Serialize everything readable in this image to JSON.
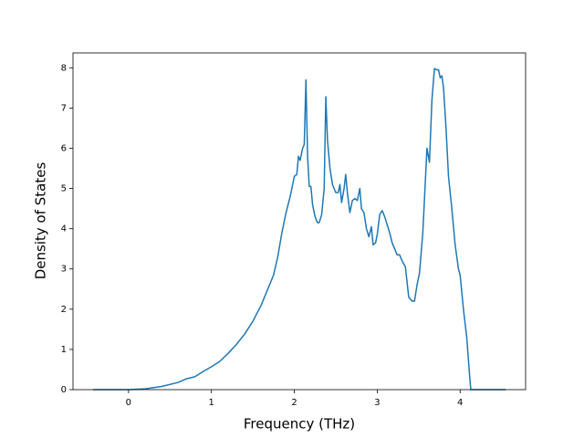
{
  "chart_data": {
    "type": "line",
    "xlabel": "Frequency (THz)",
    "ylabel": "Density of States",
    "color": "#1f77b4",
    "xlim": [
      -0.67,
      4.79
    ],
    "ylim": [
      0,
      8.37
    ],
    "xticks": [
      0,
      1,
      2,
      3,
      4
    ],
    "yticks": [
      0,
      1,
      2,
      3,
      4,
      5,
      6,
      7,
      8
    ],
    "x": [
      -0.43,
      0,
      0.2,
      0.4,
      0.6,
      0.7,
      0.8,
      0.9,
      1.0,
      1.1,
      1.2,
      1.3,
      1.4,
      1.5,
      1.6,
      1.7,
      1.75,
      1.8,
      1.85,
      1.9,
      1.95,
      2.0,
      2.03,
      2.05,
      2.07,
      2.1,
      2.12,
      2.14,
      2.16,
      2.18,
      2.2,
      2.22,
      2.25,
      2.28,
      2.3,
      2.33,
      2.36,
      2.38,
      2.4,
      2.43,
      2.46,
      2.5,
      2.53,
      2.55,
      2.57,
      2.6,
      2.62,
      2.64,
      2.67,
      2.7,
      2.73,
      2.76,
      2.79,
      2.81,
      2.84,
      2.87,
      2.9,
      2.93,
      2.95,
      2.98,
      3.0,
      3.03,
      3.06,
      3.09,
      3.12,
      3.15,
      3.18,
      3.21,
      3.24,
      3.27,
      3.3,
      3.34,
      3.38,
      3.42,
      3.45,
      3.48,
      3.51,
      3.55,
      3.6,
      3.63,
      3.66,
      3.69,
      3.72,
      3.74,
      3.76,
      3.78,
      3.8,
      3.83,
      3.86,
      3.9,
      3.94,
      3.98,
      4.0,
      4.04,
      4.08,
      4.12,
      4.13,
      4.3,
      4.55
    ],
    "values": [
      0,
      0,
      0.02,
      0.08,
      0.18,
      0.27,
      0.32,
      0.45,
      0.57,
      0.7,
      0.9,
      1.12,
      1.38,
      1.7,
      2.1,
      2.6,
      2.85,
      3.3,
      3.9,
      4.4,
      4.8,
      5.3,
      5.35,
      5.8,
      5.7,
      6.0,
      6.1,
      7.7,
      5.8,
      5.05,
      5.05,
      4.6,
      4.3,
      4.15,
      4.15,
      4.35,
      5.0,
      7.28,
      6.2,
      5.5,
      5.1,
      4.9,
      4.9,
      5.1,
      4.65,
      5.0,
      5.35,
      4.9,
      4.4,
      4.7,
      4.75,
      4.7,
      5.0,
      4.5,
      4.4,
      4.0,
      3.8,
      4.05,
      3.6,
      3.65,
      3.85,
      4.35,
      4.45,
      4.3,
      4.1,
      3.9,
      3.65,
      3.5,
      3.35,
      3.35,
      3.2,
      3.05,
      2.3,
      2.2,
      2.2,
      2.6,
      2.9,
      3.9,
      6.0,
      5.65,
      7.2,
      7.98,
      7.95,
      7.95,
      7.75,
      7.8,
      7.5,
      6.5,
      5.3,
      4.5,
      3.6,
      3.0,
      2.85,
      2.0,
      1.3,
      0.2,
      0,
      0,
      0
    ]
  }
}
